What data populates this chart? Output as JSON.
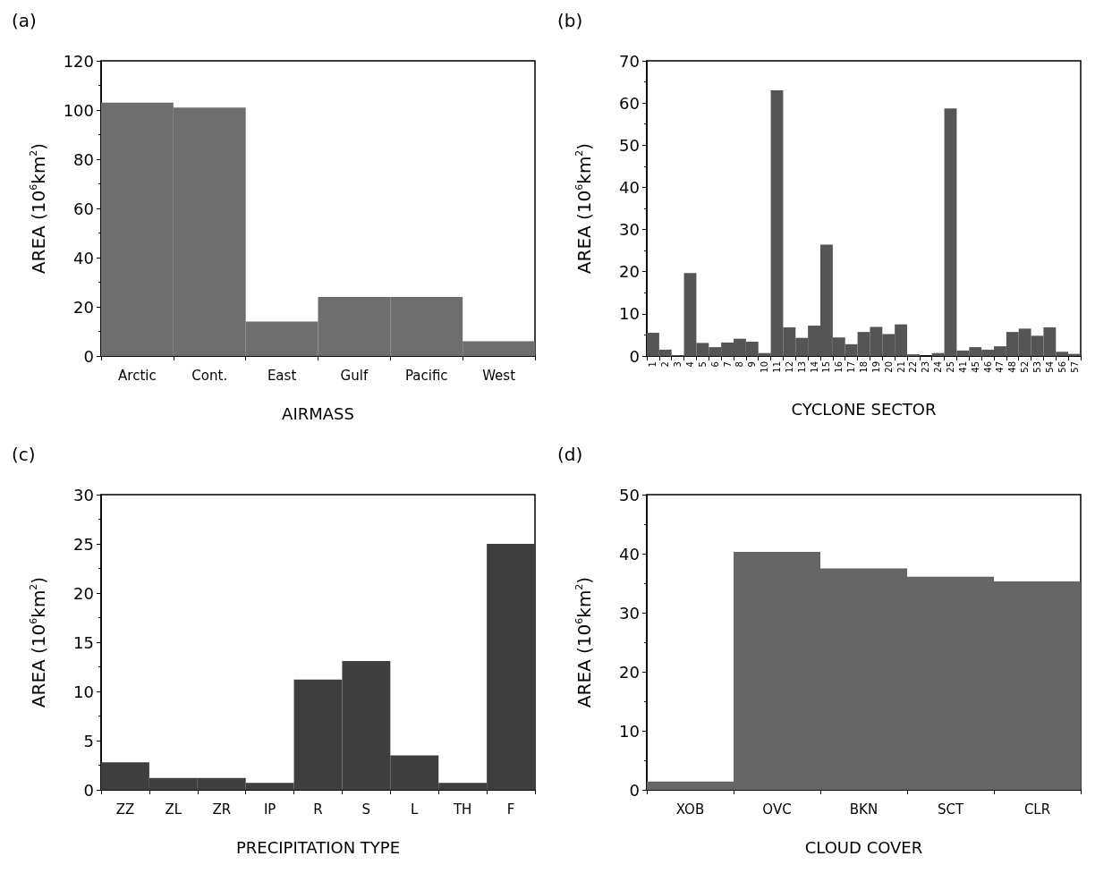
{
  "chart_data": [
    {
      "type": "bar",
      "title": "(a)",
      "xlabel": "AIRMASS",
      "ylabel": "AREA (10$^{6}$km$^{2}$)",
      "categories": [
        "Arctic",
        "Cont.",
        "East",
        "Gulf",
        "Pacific",
        "West"
      ],
      "values": [
        103,
        101,
        14,
        24,
        24,
        6
      ],
      "color": "#6e6e6e",
      "ylim": [
        0,
        120
      ],
      "yticks": [
        0,
        20,
        40,
        60,
        80,
        100,
        120
      ]
    },
    {
      "type": "bar",
      "title": "(b)",
      "xlabel": "CYCLONE SECTOR",
      "ylabel": "AREA (10$^{6}$km$^{2}$)",
      "categories": [
        "1",
        "2",
        "3",
        "4",
        "5",
        "6",
        "7",
        "8",
        "9",
        "10",
        "11",
        "12",
        "13",
        "14",
        "15",
        "16",
        "17",
        "18",
        "19",
        "20",
        "21",
        "22",
        "23",
        "24",
        "25",
        "41",
        "45",
        "46",
        "47",
        "48",
        "52",
        "53",
        "54",
        "56",
        "57"
      ],
      "values": [
        5.5,
        1.5,
        0.2,
        19.7,
        3.1,
        2.1,
        3.2,
        4.1,
        3.4,
        0.7,
        63,
        6.8,
        4.3,
        7.2,
        26.4,
        4.4,
        2.8,
        5.7,
        6.9,
        5.2,
        7.5,
        0.4,
        null,
        0.7,
        58.7,
        1.3,
        2.1,
        1.5,
        2.3,
        5.7,
        6.5,
        4.8,
        6.8,
        1.0,
        0.5
      ],
      "color": "#555555",
      "ylim": [
        0,
        70
      ],
      "yticks": [
        0,
        10,
        20,
        30,
        40,
        50,
        60,
        70
      ]
    },
    {
      "type": "bar",
      "title": "(c)",
      "xlabel": "PRECIPITATION TYPE",
      "ylabel": "AREA (10$^{6}$km$^{2}$)",
      "categories": [
        "ZZ",
        "ZL",
        "ZR",
        "IP",
        "R",
        "S",
        "L",
        "TH",
        "F"
      ],
      "values": [
        2.8,
        1.2,
        1.2,
        0.7,
        11.2,
        13.1,
        3.5,
        0.7,
        25
      ],
      "color": "#3f3f3f",
      "ylim": [
        0,
        30
      ],
      "yticks": [
        0,
        5,
        10,
        15,
        20,
        25,
        30
      ]
    },
    {
      "type": "bar",
      "title": "(d)",
      "xlabel": "CLOUD COVER",
      "ylabel": "AREA (10$^{6}$km$^{2}$)",
      "categories": [
        "XOB",
        "OVC",
        "BKN",
        "SCT",
        "CLR"
      ],
      "values": [
        1.4,
        40.3,
        37.5,
        36.1,
        35.3
      ],
      "color": "#666666",
      "ylim": [
        0,
        50
      ],
      "yticks": [
        0,
        10,
        20,
        30,
        40,
        50
      ]
    }
  ]
}
